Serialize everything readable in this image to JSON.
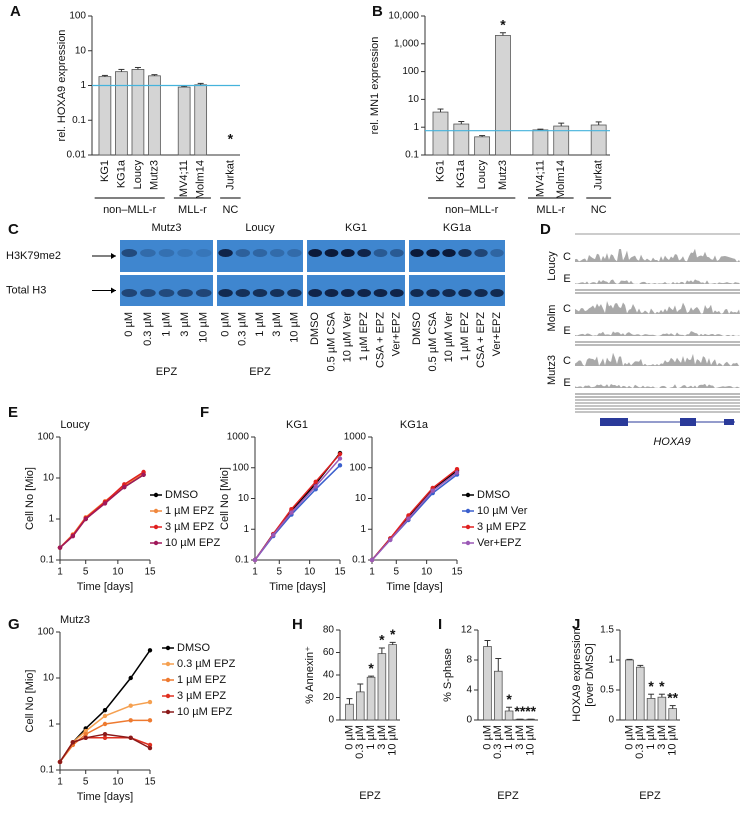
{
  "chart_data": [
    {
      "panel": "A",
      "type": "bar",
      "scale": "log",
      "ylabel": "rel. HOXA9 expression",
      "ylim": [
        0.01,
        100
      ],
      "yticks": [
        0.01,
        0.1,
        1,
        10,
        100
      ],
      "ref_line": 1,
      "ref_color": "#45b3dc",
      "color": "#d4d4d4",
      "groups": [
        {
          "name": "non–MLL-r",
          "categories": [
            "KG1",
            "KG1a",
            "Loucy",
            "Mutz3"
          ],
          "values": [
            1.8,
            2.5,
            2.9,
            1.9
          ],
          "errors": [
            0.15,
            0.4,
            0.4,
            0.15
          ]
        },
        {
          "name": "MLL-r",
          "categories": [
            "MV4;11",
            "Molm14"
          ],
          "values": [
            0.9,
            1.05
          ],
          "errors": [
            0.05,
            0.1
          ]
        },
        {
          "name": "NC",
          "categories": [
            "Jurkat"
          ],
          "values": [
            null
          ],
          "errors": [
            null
          ],
          "marks": [
            "*"
          ]
        }
      ]
    },
    {
      "panel": "B",
      "type": "bar",
      "scale": "log",
      "ylabel": "rel. MN1 expression",
      "ylim": [
        0.1,
        10000
      ],
      "yticks": [
        0.1,
        1,
        10,
        100,
        {
          "value": 1000,
          "label": "1,000"
        },
        {
          "value": 10000,
          "label": "10,000"
        }
      ],
      "ref_line": 0.75,
      "ref_color": "#45b3dc",
      "color": "#d4d4d4",
      "groups": [
        {
          "name": "non–MLL-r",
          "categories": [
            "KG1",
            "KG1a",
            "Loucy",
            "Mutz3"
          ],
          "values": [
            3.5,
            1.3,
            0.45,
            2000
          ],
          "errors": [
            1,
            0.3,
            0.05,
            500
          ],
          "marks": [
            null,
            null,
            null,
            "*"
          ]
        },
        {
          "name": "MLL-r",
          "categories": [
            "MV4;11",
            "Molm14"
          ],
          "values": [
            0.8,
            1.1
          ],
          "errors": [
            0.05,
            0.3
          ]
        },
        {
          "name": "NC",
          "categories": [
            "Jurkat"
          ],
          "values": [
            1.2
          ],
          "errors": [
            0.35
          ]
        }
      ]
    },
    {
      "panel": "E",
      "type": "line",
      "scale": "log",
      "title": "Loucy",
      "xlabel": "Time [days]",
      "ylabel": "Cell No [Mio]",
      "xlim": [
        1,
        15
      ],
      "xticks": [
        1,
        5,
        10,
        15
      ],
      "ylim": [
        0.1,
        100
      ],
      "yticks": [
        0.1,
        1,
        10,
        100
      ],
      "x": [
        1,
        3,
        5,
        8,
        11,
        14
      ],
      "series": [
        {
          "name": "DMSO",
          "color": "#000000",
          "values": [
            0.2,
            0.4,
            1,
            2.5,
            6,
            12
          ]
        },
        {
          "name": "1 µM EPZ",
          "color": "#f0883e",
          "values": [
            0.2,
            0.42,
            1.1,
            2.7,
            6.5,
            13
          ]
        },
        {
          "name": "3 µM EPZ",
          "color": "#e02020",
          "values": [
            0.2,
            0.4,
            1.05,
            2.6,
            7,
            14
          ]
        },
        {
          "name": "10 µM EPZ",
          "color": "#a0185a",
          "values": [
            0.2,
            0.38,
            1,
            2.4,
            6,
            12
          ]
        }
      ]
    },
    {
      "panel": "F",
      "type": "line",
      "scale": "log",
      "title": "KG1",
      "xlabel": "Time [days]",
      "ylabel": "Cell No [Mio]",
      "xlim": [
        1,
        15
      ],
      "xticks": [
        1,
        5,
        10,
        15
      ],
      "ylim": [
        0.1,
        1000
      ],
      "yticks": [
        0.1,
        1,
        10,
        100,
        1000
      ],
      "x": [
        1,
        4,
        7,
        11,
        15
      ],
      "series": [
        {
          "color": "#000000",
          "values": [
            0.1,
            0.7,
            4,
            30,
            300
          ]
        },
        {
          "color": "#3a5fcd",
          "values": [
            0.1,
            0.6,
            3,
            20,
            120
          ]
        },
        {
          "color": "#e02020",
          "values": [
            0.1,
            0.7,
            4.5,
            35,
            280
          ]
        },
        {
          "color": "#9b59b6",
          "values": [
            0.1,
            0.65,
            3.5,
            25,
            200
          ]
        }
      ]
    },
    {
      "type": "line",
      "scale": "log",
      "title": "KG1a",
      "xlabel": "Time [days]",
      "xlim": [
        1,
        15
      ],
      "xticks": [
        1,
        5,
        10,
        15
      ],
      "ylim": [
        0.1,
        1000
      ],
      "yticks": [
        0.1,
        1,
        10,
        100,
        1000
      ],
      "x": [
        1,
        4,
        7,
        11,
        15
      ],
      "series": [
        {
          "name": "DMSO",
          "color": "#000000",
          "values": [
            0.1,
            0.5,
            2.5,
            20,
            80
          ]
        },
        {
          "name": "10 µM Ver",
          "color": "#3a5fcd",
          "values": [
            0.1,
            0.45,
            2,
            15,
            60
          ]
        },
        {
          "name": "3 µM EPZ",
          "color": "#e02020",
          "values": [
            0.1,
            0.5,
            2.8,
            22,
            90
          ]
        },
        {
          "name": "Ver+EPZ",
          "color": "#9b59b6",
          "values": [
            0.1,
            0.45,
            2.2,
            18,
            70
          ]
        }
      ]
    },
    {
      "panel": "G",
      "type": "line",
      "scale": "log",
      "title": "Mutz3",
      "xlabel": "Time [days]",
      "ylabel": "Cell No [Mio]",
      "xlim": [
        1,
        15
      ],
      "xticks": [
        1,
        5,
        10,
        15
      ],
      "ylim": [
        0.1,
        100
      ],
      "yticks": [
        0.1,
        1,
        10,
        100
      ],
      "x": [
        1,
        3,
        5,
        8,
        12,
        15
      ],
      "series": [
        {
          "name": "DMSO",
          "color": "#000000",
          "values": [
            0.15,
            0.4,
            0.8,
            2,
            10,
            40
          ]
        },
        {
          "name": "0.3 µM EPZ",
          "color": "#f5a050",
          "values": [
            0.15,
            0.4,
            0.7,
            1.5,
            2.5,
            3
          ]
        },
        {
          "name": "1 µM EPZ",
          "color": "#ee7a30",
          "values": [
            0.15,
            0.35,
            0.6,
            1,
            1.2,
            1.2
          ]
        },
        {
          "name": "3 µM EPZ",
          "color": "#e03020",
          "values": [
            0.15,
            0.4,
            0.5,
            0.5,
            0.5,
            0.35
          ]
        },
        {
          "name": "10 µM EPZ",
          "color": "#8b1a1a",
          "values": [
            0.15,
            0.4,
            0.5,
            0.6,
            0.5,
            0.3
          ]
        }
      ]
    },
    {
      "panel": "H",
      "type": "bar",
      "ylabel": "% Annexin⁺",
      "xlabel": "EPZ",
      "ylim": [
        0,
        80
      ],
      "yticks": [
        0,
        20,
        40,
        60,
        80
      ],
      "color": "#d4d4d4",
      "categories": [
        "0 µM",
        "0.3 µM",
        "1 µM",
        "3 µM",
        "10 µM"
      ],
      "values": [
        14,
        25,
        38,
        59,
        67
      ],
      "errors": [
        5,
        7,
        1,
        5,
        2
      ],
      "marks": [
        null,
        null,
        "*",
        "*",
        "*"
      ]
    },
    {
      "panel": "I",
      "type": "bar",
      "ylabel": "% S-phase",
      "xlabel": "EPZ",
      "ylim": [
        0,
        12
      ],
      "yticks": [
        0,
        4,
        8,
        12
      ],
      "color": "#d4d4d4",
      "categories": [
        "0 µM",
        "0.3 µM",
        "1 µM",
        "3 µM",
        "10 µM"
      ],
      "values": [
        9.8,
        6.5,
        1.2,
        0.1,
        0.1
      ],
      "errors": [
        0.8,
        1.7,
        0.5,
        0,
        0
      ],
      "marks": [
        null,
        null,
        "*",
        "**",
        "**"
      ]
    },
    {
      "panel": "J",
      "type": "bar",
      "ylabel": [
        "HOXA9 expression",
        "[over DMSO]"
      ],
      "xlabel": "EPZ",
      "ylim": [
        0,
        1.5
      ],
      "yticks": [
        0,
        0.5,
        1,
        1.5
      ],
      "color": "#d4d4d4",
      "categories": [
        "0 µM",
        "0.3 µM",
        "1 µM",
        "3 µM",
        "10 µM"
      ],
      "values": [
        1,
        0.88,
        0.36,
        0.38,
        0.19
      ],
      "errors": [
        0.01,
        0.03,
        0.07,
        0.05,
        0.05
      ],
      "marks": [
        null,
        null,
        "*",
        "*",
        "**"
      ]
    }
  ],
  "blot": {
    "panel": "C",
    "rows": [
      "H3K79me2",
      "Total H3"
    ],
    "sections": [
      {
        "cell": "Mutz3",
        "lanes": [
          "0 µM",
          "0.3 µM",
          "1 µM",
          "3 µM",
          "10 µM"
        ],
        "treatment": "EPZ"
      },
      {
        "cell": "Loucy",
        "lanes": [
          "0 µM",
          "0.3 µM",
          "1 µM",
          "3 µM",
          "10 µM"
        ],
        "treatment": "EPZ"
      },
      {
        "cell": "KG1",
        "lanes": [
          "DMSO",
          "0.5 µM CSA",
          "10 µM Ver",
          "1 µM EPZ",
          "CSA + EPZ",
          "Ver+EPZ"
        ]
      },
      {
        "cell": "KG1a",
        "lanes": [
          "DMSO",
          "0.5 µM CSA",
          "10 µM Ver",
          "1 µM EPZ",
          "CSA + EPZ",
          "Ver+EPZ"
        ]
      }
    ]
  },
  "tracks": {
    "panel": "D",
    "samples": [
      {
        "name": "Loucy",
        "rows": [
          "C",
          "E"
        ]
      },
      {
        "name": "Molm",
        "rows": [
          "C",
          "E"
        ]
      },
      {
        "name": "Mutz3",
        "rows": [
          "C",
          "E"
        ]
      }
    ],
    "gene": "HOXA9"
  }
}
